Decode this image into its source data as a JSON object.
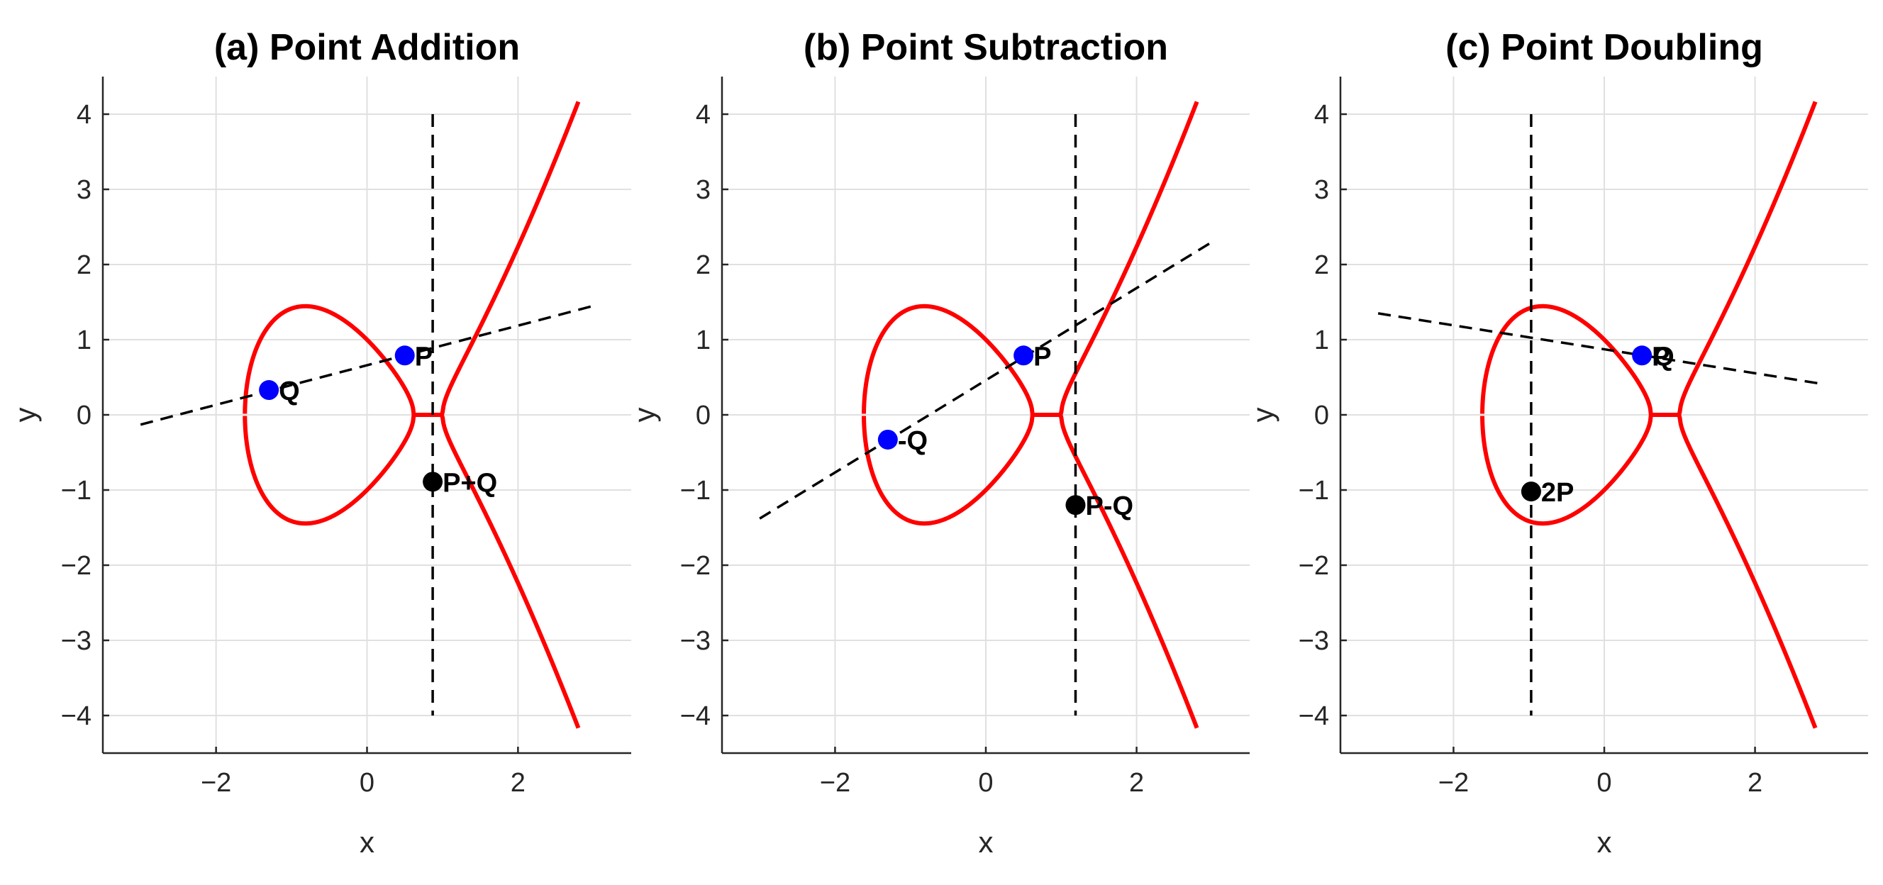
{
  "colors": {
    "curve": "#ff0000",
    "input_point": "#0000ff",
    "result_point": "#000000",
    "construction_line": "#000000",
    "grid": "#e0e0e0",
    "axis": "#262626"
  },
  "chart_data": [
    {
      "type": "line",
      "title": "(a) Point Addition",
      "xlabel": "x",
      "ylabel": "y",
      "xlim": [
        -3.5,
        3.5
      ],
      "ylim": [
        -4.5,
        4.5
      ],
      "xticks": [
        -2,
        0,
        2
      ],
      "xtick_labels": [
        "−2",
        "0",
        "2"
      ],
      "yticks": [
        -4,
        -3,
        -2,
        -1,
        0,
        1,
        2,
        3,
        4
      ],
      "ytick_labels": [
        "−4",
        "−3",
        "−2",
        "−1",
        "0",
        "1",
        "2",
        "3",
        "4"
      ],
      "grid": true,
      "curve_equation": "y^2 = x^3 - 2x + 1",
      "curve_x_range": [
        -1.618,
        2.8
      ],
      "lines": [
        {
          "style": "dashed",
          "points": [
            [
              -3,
              -0.13
            ],
            [
              3,
              1.45
            ]
          ]
        },
        {
          "style": "dashed",
          "points": [
            [
              0.87,
              4.0
            ],
            [
              0.87,
              -4.0
            ]
          ]
        }
      ],
      "points": [
        {
          "label": "Q",
          "x": -1.3,
          "y": 0.33,
          "role": "input"
        },
        {
          "label": "P",
          "x": 0.5,
          "y": 0.79,
          "role": "input"
        },
        {
          "label": "P+Q",
          "x": 0.87,
          "y": -0.89,
          "role": "result"
        }
      ]
    },
    {
      "type": "line",
      "title": "(b) Point Subtraction",
      "xlabel": "x",
      "ylabel": "y",
      "xlim": [
        -3.5,
        3.5
      ],
      "ylim": [
        -4.5,
        4.5
      ],
      "xticks": [
        -2,
        0,
        2
      ],
      "xtick_labels": [
        "−2",
        "0",
        "2"
      ],
      "yticks": [
        -4,
        -3,
        -2,
        -1,
        0,
        1,
        2,
        3,
        4
      ],
      "ytick_labels": [
        "−4",
        "−3",
        "−2",
        "−1",
        "0",
        "1",
        "2",
        "3",
        "4"
      ],
      "grid": true,
      "curve_equation": "y^2 = x^3 - 2x + 1",
      "curve_x_range": [
        -1.618,
        2.8
      ],
      "lines": [
        {
          "style": "dashed",
          "points": [
            [
              -3,
              -1.38
            ],
            [
              3,
              2.3
            ]
          ]
        },
        {
          "style": "dashed",
          "points": [
            [
              1.19,
              4.0
            ],
            [
              1.19,
              -4.0
            ]
          ]
        }
      ],
      "points": [
        {
          "label": "-Q",
          "x": -1.3,
          "y": -0.33,
          "role": "input"
        },
        {
          "label": "P",
          "x": 0.5,
          "y": 0.79,
          "role": "input"
        },
        {
          "label": "P-Q",
          "x": 1.19,
          "y": -1.2,
          "role": "result"
        }
      ]
    },
    {
      "type": "line",
      "title": "(c) Point Doubling",
      "xlabel": "x",
      "ylabel": "y",
      "xlim": [
        -3.5,
        3.5
      ],
      "ylim": [
        -4.5,
        4.5
      ],
      "xticks": [
        -2,
        0,
        2
      ],
      "xtick_labels": [
        "−2",
        "0",
        "2"
      ],
      "yticks": [
        -4,
        -3,
        -2,
        -1,
        0,
        1,
        2,
        3,
        4
      ],
      "ytick_labels": [
        "−4",
        "−3",
        "−2",
        "−1",
        "0",
        "1",
        "2",
        "3",
        "4"
      ],
      "grid": true,
      "curve_equation": "y^2 = x^3 - 2x + 1",
      "curve_x_range": [
        -1.618,
        2.8
      ],
      "lines": [
        {
          "style": "dashed",
          "points": [
            [
              -3,
              1.35
            ],
            [
              2.9,
              0.41
            ]
          ]
        },
        {
          "style": "dashed",
          "points": [
            [
              -0.97,
              4.0
            ],
            [
              -0.97,
              -4.0
            ]
          ]
        }
      ],
      "points": [
        {
          "label": "P",
          "x": 0.5,
          "y": 0.79,
          "role": "input",
          "overlap_label": "Q"
        },
        {
          "label": "2P",
          "x": -0.97,
          "y": -1.02,
          "role": "result"
        }
      ]
    }
  ]
}
